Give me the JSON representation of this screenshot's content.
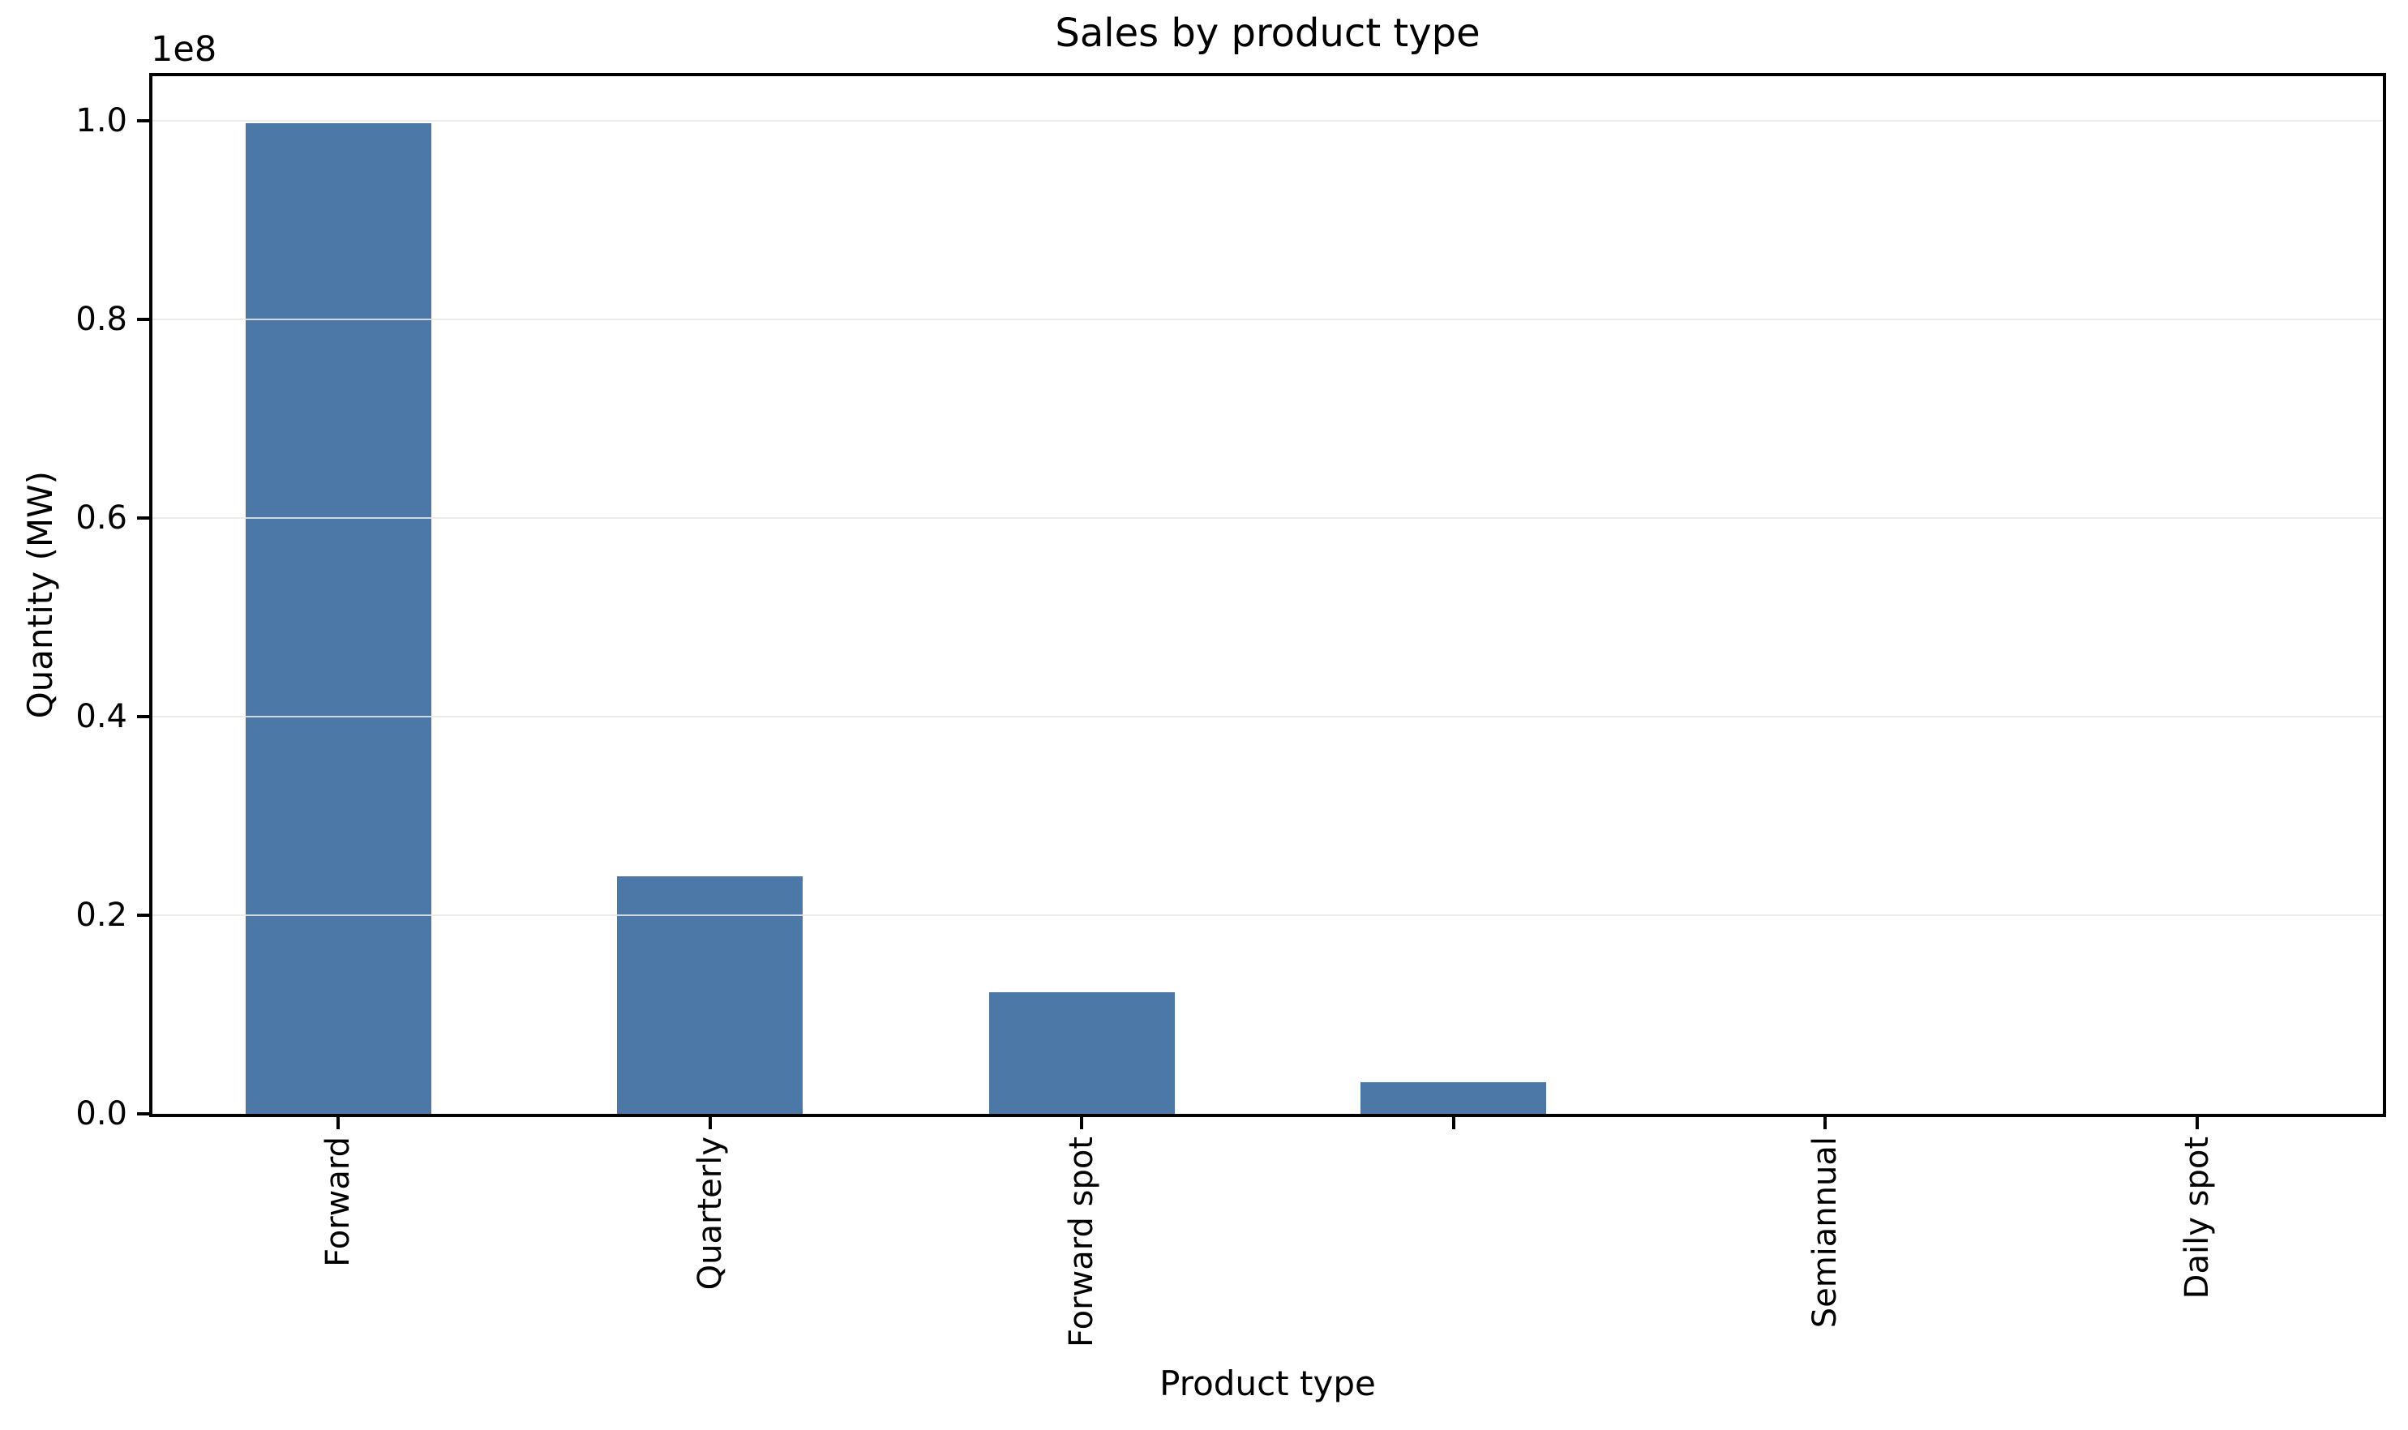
{
  "chart_data": {
    "type": "bar",
    "title": "Sales by product type",
    "xlabel": "Product type",
    "ylabel": "Quantity (MW)",
    "y_scale_offset_label": "1e8",
    "categories": [
      "Forward",
      "Quarterly",
      "Forward spot",
      "",
      "Semiannual",
      "Daily spot"
    ],
    "values": [
      99800000,
      23900000,
      12250000,
      3200000,
      0,
      0
    ],
    "ylim": [
      0,
      104500000
    ],
    "yticks": [
      0,
      20000000,
      40000000,
      60000000,
      80000000,
      100000000
    ],
    "ytick_labels": [
      "0.0",
      "0.2",
      "0.4",
      "0.6",
      "0.8",
      "1.0"
    ],
    "bar_color": "#4c78a8",
    "grid": true,
    "legend": "none",
    "bar_width_frac": 0.5,
    "x_tick_rotation": 90
  }
}
